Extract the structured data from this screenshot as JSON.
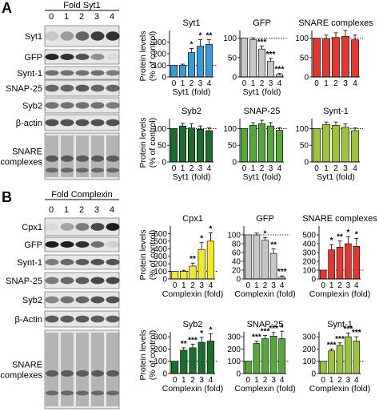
{
  "panels": [
    {
      "letter": "A",
      "blot_header": "Fold Syt1",
      "lanes": [
        "0",
        "1",
        "2",
        "3",
        "4"
      ],
      "blot_rows": [
        {
          "label": "Syt1",
          "bands": [
            0.15,
            0.35,
            0.6,
            0.8,
            0.85
          ]
        },
        {
          "label": "GFP",
          "bands": [
            0.9,
            0.85,
            0.7,
            0.4,
            0.05
          ]
        },
        {
          "label": "Synt-1",
          "bands": [
            0.55,
            0.55,
            0.55,
            0.55,
            0.5
          ]
        },
        {
          "label": "SNAP-25",
          "bands": [
            0.6,
            0.6,
            0.65,
            0.6,
            0.6
          ]
        },
        {
          "label": "Syb2",
          "bands": [
            0.55,
            0.55,
            0.55,
            0.55,
            0.5
          ]
        },
        {
          "label": "β-actin",
          "bands": [
            0.7,
            0.7,
            0.7,
            0.7,
            0.7
          ]
        },
        {
          "label": "SNARE\ncomplexes",
          "smear": true
        }
      ],
      "graph_ylabel": "Protein levels\n(% of control)"
    },
    {
      "letter": "B",
      "blot_header": "Fold Complexin",
      "lanes": [
        "0",
        "1",
        "2",
        "3",
        "4"
      ],
      "blot_rows": [
        {
          "label": "Cpx1",
          "bands": [
            0.05,
            0.3,
            0.5,
            0.75,
            0.95
          ]
        },
        {
          "label": "GFP",
          "bands": [
            0.95,
            0.95,
            0.85,
            0.55,
            0.1
          ]
        },
        {
          "label": "Synt-1",
          "bands": [
            0.5,
            0.6,
            0.65,
            0.7,
            0.7
          ]
        },
        {
          "label": "SNAP-25",
          "bands": [
            0.5,
            0.6,
            0.65,
            0.75,
            0.75
          ]
        },
        {
          "label": "Syb2",
          "bands": [
            0.45,
            0.55,
            0.6,
            0.7,
            0.7
          ]
        },
        {
          "label": "β-Actin",
          "bands": [
            0.65,
            0.65,
            0.65,
            0.65,
            0.65
          ]
        },
        {
          "label": "SNARE\ncomplexes",
          "smear": true
        }
      ],
      "graph_ylabel": "Protein levels\n(% of control)"
    }
  ],
  "chart_data": [
    {
      "type": "bar",
      "title": "Syt1",
      "categories": [
        "0",
        "1",
        "2",
        "3",
        "4"
      ],
      "values": [
        100,
        100,
        210,
        265,
        280
      ],
      "errors": [
        0,
        10,
        35,
        55,
        40
      ],
      "ylim": [
        0,
        400
      ],
      "yticks": [
        0,
        100,
        200,
        300
      ],
      "ref_line": 100,
      "color": "#3a9ad9",
      "stars": [
        "",
        "",
        "*",
        "*",
        "**"
      ],
      "xlabel": "Syt1 (fold)",
      "xlabel_show": true
    },
    {
      "type": "bar",
      "title": "GFP",
      "categories": [
        "0",
        "1",
        "2",
        "3",
        "4"
      ],
      "values": [
        100,
        96,
        72,
        40,
        6
      ],
      "errors": [
        0,
        5,
        8,
        8,
        3
      ],
      "ylim": [
        0,
        120
      ],
      "yticks": [
        0,
        50,
        100
      ],
      "ref_line": 100,
      "color": "#c7c7c7",
      "stars": [
        "",
        "",
        "***",
        "***",
        "***"
      ],
      "xlabel": "Syt1 (fold)",
      "xlabel_show": true
    },
    {
      "type": "bar",
      "title": "SNARE complexes",
      "categories": [
        "0",
        "1",
        "2",
        "3",
        "4"
      ],
      "values": [
        100,
        98,
        102,
        105,
        96
      ],
      "errors": [
        0,
        10,
        12,
        15,
        12
      ],
      "ylim": [
        0,
        120
      ],
      "yticks": [
        0,
        50,
        100
      ],
      "ref_line": 100,
      "color": "#e53630",
      "stars": [
        "",
        "",
        "",
        "",
        ""
      ],
      "xlabel": "",
      "xlabel_show": false
    },
    {
      "type": "bar",
      "title": "",
      "label_in_plot": "Syb2",
      "categories": [
        "0",
        "1",
        "2",
        "3",
        "4"
      ],
      "values": [
        100,
        108,
        102,
        98,
        94
      ],
      "errors": [
        0,
        8,
        12,
        10,
        8
      ],
      "ylim": [
        0,
        130
      ],
      "yticks": [
        0,
        50,
        100
      ],
      "ref_line": 100,
      "color": "#1b6e2e",
      "stars": [
        "",
        "",
        "",
        "",
        ""
      ],
      "xlabel": "Syt1 (fold)",
      "xlabel_show": true
    },
    {
      "type": "bar",
      "title": "",
      "label_in_plot": "SNAP-25",
      "categories": [
        "0",
        "1",
        "2",
        "3",
        "4"
      ],
      "values": [
        100,
        110,
        115,
        108,
        95
      ],
      "errors": [
        0,
        8,
        10,
        10,
        8
      ],
      "ylim": [
        0,
        130
      ],
      "yticks": [
        0,
        50,
        100
      ],
      "ref_line": 100,
      "color": "#55a83a",
      "stars": [
        "",
        "",
        "",
        "",
        ""
      ],
      "xlabel": "Syt1 (fold)",
      "xlabel_show": true
    },
    {
      "type": "bar",
      "title": "",
      "label_in_plot": "Synt-1",
      "categories": [
        "0",
        "1",
        "2",
        "3",
        "4"
      ],
      "values": [
        100,
        112,
        110,
        104,
        94
      ],
      "errors": [
        0,
        8,
        10,
        10,
        8
      ],
      "ylim": [
        0,
        130
      ],
      "yticks": [
        0,
        50,
        100
      ],
      "ref_line": 100,
      "color": "#9bc43a",
      "stars": [
        "",
        "",
        "",
        "",
        ""
      ],
      "xlabel": "Syt1 (fold)",
      "xlabel_show": true
    },
    {
      "type": "bar",
      "title": "Cpx1",
      "categories": [
        "0",
        "1",
        "2",
        "3",
        "4"
      ],
      "values": [
        100,
        100,
        170,
        390,
        500
      ],
      "errors": [
        0,
        15,
        40,
        90,
        110
      ],
      "ylim": [
        0,
        700
      ],
      "yticks": [
        0,
        100,
        200,
        300,
        400,
        500,
        600
      ],
      "ref_line": 100,
      "color": "#f2e92a",
      "stars": [
        "",
        "",
        "**",
        "*",
        "*"
      ],
      "xlabel": "Complexin (fold)",
      "xlabel_show": true
    },
    {
      "type": "bar",
      "title": "GFP",
      "categories": [
        "0",
        "1",
        "2",
        "3",
        "4"
      ],
      "values": [
        100,
        100,
        88,
        58,
        4
      ],
      "errors": [
        0,
        4,
        6,
        10,
        3
      ],
      "ylim": [
        0,
        120
      ],
      "yticks": [
        0,
        20,
        40,
        60,
        80,
        100
      ],
      "ref_line": 100,
      "color": "#c7c7c7",
      "stars": [
        "",
        "",
        "*",
        "**",
        "***"
      ],
      "xlabel": "Complexin (fold)",
      "xlabel_show": true
    },
    {
      "type": "bar",
      "title": "SNARE complexes",
      "categories": [
        "0",
        "1",
        "2",
        "3",
        "4"
      ],
      "values": [
        100,
        330,
        360,
        400,
        370
      ],
      "errors": [
        0,
        60,
        70,
        80,
        90
      ],
      "ylim": [
        0,
        600
      ],
      "yticks": [
        0,
        100,
        200,
        300,
        400,
        500
      ],
      "ref_line": 100,
      "color": "#e53630",
      "stars": [
        "",
        "*",
        "**",
        "*",
        "*"
      ],
      "xlabel": "Complexin (fold)",
      "xlabel_show": true
    },
    {
      "type": "bar",
      "title": "",
      "label_in_plot": "Syb2",
      "categories": [
        "0",
        "1",
        "2",
        "3",
        "4"
      ],
      "values": [
        100,
        190,
        210,
        255,
        265
      ],
      "errors": [
        0,
        20,
        30,
        40,
        60
      ],
      "ylim": [
        0,
        340
      ],
      "yticks": [
        0,
        100,
        200,
        300
      ],
      "ref_line": 100,
      "color": "#1b6e2e",
      "stars": [
        "",
        "**",
        "***",
        "*",
        "*"
      ],
      "xlabel": "Complexin (fold)",
      "xlabel_show": true
    },
    {
      "type": "bar",
      "title": "",
      "label_in_plot": "SNAP-25",
      "categories": [
        "0",
        "1",
        "2",
        "3",
        "4"
      ],
      "values": [
        100,
        245,
        285,
        305,
        285
      ],
      "errors": [
        0,
        20,
        25,
        30,
        60
      ],
      "ylim": [
        0,
        340
      ],
      "yticks": [
        0,
        100,
        200,
        300
      ],
      "ref_line": 100,
      "color": "#55a83a",
      "stars": [
        "",
        "***",
        "***",
        "***",
        "*"
      ],
      "xlabel": "Complexin (fold)",
      "xlabel_show": true
    },
    {
      "type": "bar",
      "title": "",
      "label_in_plot": "Synt-1",
      "categories": [
        "0",
        "1",
        "2",
        "3",
        "4"
      ],
      "values": [
        100,
        185,
        230,
        300,
        265
      ],
      "errors": [
        0,
        15,
        20,
        30,
        35
      ],
      "ylim": [
        0,
        340
      ],
      "yticks": [
        0,
        100,
        200,
        300
      ],
      "ref_line": 100,
      "color": "#9bc43a",
      "stars": [
        "",
        "***",
        "***",
        "***",
        "***"
      ],
      "xlabel": "Complexin (fold)",
      "xlabel_show": true
    }
  ]
}
